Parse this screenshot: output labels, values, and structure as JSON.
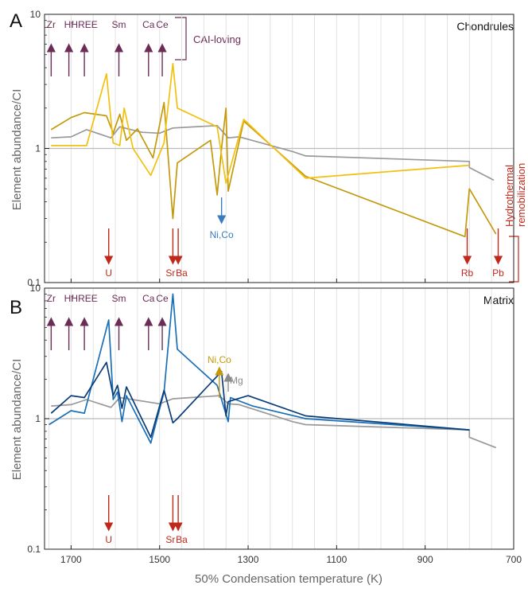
{
  "chart_data": [
    {
      "type": "line",
      "panel": "A",
      "title": "Chondrules",
      "xlabel": "50% Condensation temperature (K)",
      "ylabel": "Element abundance/CI",
      "xlim": [
        1760,
        700
      ],
      "ylim": [
        0.1,
        10
      ],
      "y_scale": "log",
      "x_ticks": [
        1700,
        1500,
        1300,
        1100,
        900,
        700
      ],
      "y_ticks": [
        {
          "v": 0.1,
          "label": "0.1"
        },
        {
          "v": 1,
          "label": "1"
        },
        {
          "v": 10,
          "label": "10"
        }
      ],
      "reference_line": 1,
      "series": [
        {
          "color": "#999999",
          "points": [
            [
              1745,
              1.2
            ],
            [
              1700,
              1.22
            ],
            [
              1665,
              1.38
            ],
            [
              1610,
              1.2
            ],
            [
              1590,
              1.45
            ],
            [
              1540,
              1.32
            ],
            [
              1500,
              1.3
            ],
            [
              1470,
              1.42
            ],
            [
              1370,
              1.48
            ],
            [
              1345,
              1.2
            ],
            [
              1320,
              1.22
            ],
            [
              1200,
              0.95
            ],
            [
              1170,
              0.88
            ],
            [
              800,
              0.8
            ],
            [
              800,
              0.72
            ],
            [
              745,
              0.58
            ]
          ]
        },
        {
          "color": "#c49a0a",
          "points": [
            [
              1745,
              1.38
            ],
            [
              1700,
              1.7
            ],
            [
              1670,
              1.85
            ],
            [
              1620,
              1.75
            ],
            [
              1605,
              1.3
            ],
            [
              1590,
              1.8
            ],
            [
              1575,
              1.15
            ],
            [
              1550,
              1.4
            ],
            [
              1515,
              0.85
            ],
            [
              1490,
              2.2
            ],
            [
              1470,
              0.3
            ],
            [
              1460,
              0.78
            ],
            [
              1385,
              1.15
            ],
            [
              1370,
              0.45
            ],
            [
              1360,
              1.0
            ],
            [
              1350,
              2.0
            ],
            [
              1345,
              0.48
            ],
            [
              1310,
              1.6
            ],
            [
              1170,
              0.62
            ],
            [
              810,
              0.22
            ],
            [
              800,
              0.5
            ],
            [
              740,
              0.23
            ]
          ]
        },
        {
          "color": "#f2c00e",
          "points": [
            [
              1745,
              1.05
            ],
            [
              1700,
              1.05
            ],
            [
              1665,
              1.05
            ],
            [
              1620,
              3.6
            ],
            [
              1605,
              1.1
            ],
            [
              1590,
              1.05
            ],
            [
              1580,
              2.0
            ],
            [
              1560,
              1.0
            ],
            [
              1520,
              0.63
            ],
            [
              1490,
              1.1
            ],
            [
              1470,
              4.3
            ],
            [
              1460,
              2.0
            ],
            [
              1370,
              1.45
            ],
            [
              1350,
              0.55
            ],
            [
              1310,
              1.65
            ],
            [
              1170,
              0.6
            ],
            [
              800,
              0.75
            ]
          ]
        }
      ]
    },
    {
      "type": "line",
      "panel": "B",
      "title": "Matrix",
      "xlabel": "50% Condensation temperature (K)",
      "ylabel": "Element abundance/CI",
      "xlim": [
        1760,
        700
      ],
      "ylim": [
        0.1,
        10
      ],
      "y_scale": "log",
      "x_ticks": [
        1700,
        1500,
        1300,
        1100,
        900,
        700
      ],
      "y_ticks": [
        {
          "v": 0.1,
          "label": "0.1"
        },
        {
          "v": 1,
          "label": "1"
        },
        {
          "v": 10,
          "label": "10"
        }
      ],
      "reference_line": 1,
      "series": [
        {
          "color": "#999999",
          "points": [
            [
              1745,
              1.25
            ],
            [
              1700,
              1.28
            ],
            [
              1665,
              1.4
            ],
            [
              1610,
              1.22
            ],
            [
              1590,
              1.45
            ],
            [
              1500,
              1.3
            ],
            [
              1470,
              1.42
            ],
            [
              1365,
              1.5
            ],
            [
              1345,
              1.3
            ],
            [
              1320,
              1.28
            ],
            [
              1200,
              0.95
            ],
            [
              1170,
              0.9
            ],
            [
              800,
              0.82
            ],
            [
              800,
              0.72
            ],
            [
              740,
              0.6
            ]
          ]
        },
        {
          "color": "#1a70b8",
          "points": [
            [
              1750,
              0.9
            ],
            [
              1700,
              1.15
            ],
            [
              1670,
              1.1
            ],
            [
              1615,
              5.7
            ],
            [
              1605,
              1.4
            ],
            [
              1595,
              1.6
            ],
            [
              1585,
              0.95
            ],
            [
              1575,
              1.5
            ],
            [
              1520,
              0.65
            ],
            [
              1490,
              1.6
            ],
            [
              1470,
              9.0
            ],
            [
              1460,
              3.4
            ],
            [
              1370,
              1.8
            ],
            [
              1360,
              1.4
            ],
            [
              1345,
              0.95
            ],
            [
              1340,
              1.45
            ],
            [
              1290,
              1.25
            ],
            [
              1170,
              1.0
            ],
            [
              800,
              0.82
            ]
          ]
        },
        {
          "color": "#0a3d78",
          "points": [
            [
              1745,
              1.1
            ],
            [
              1700,
              1.5
            ],
            [
              1670,
              1.45
            ],
            [
              1620,
              2.7
            ],
            [
              1605,
              1.5
            ],
            [
              1595,
              1.8
            ],
            [
              1585,
              1.2
            ],
            [
              1575,
              1.75
            ],
            [
              1520,
              0.72
            ],
            [
              1490,
              1.65
            ],
            [
              1470,
              0.93
            ],
            [
              1460,
              1.0
            ],
            [
              1360,
              2.3
            ],
            [
              1350,
              1.05
            ],
            [
              1345,
              1.35
            ],
            [
              1300,
              1.5
            ],
            [
              1170,
              1.05
            ],
            [
              800,
              0.82
            ]
          ]
        }
      ]
    }
  ],
  "annotations": {
    "top_elements": [
      {
        "label": "Zr",
        "x": 1745
      },
      {
        "label": "Hf",
        "x": 1705
      },
      {
        "label": "HREE",
        "x": 1670
      },
      {
        "label": "Sm",
        "x": 1592
      },
      {
        "label": "Ca",
        "x": 1525
      },
      {
        "label": "Ce",
        "x": 1494
      }
    ],
    "top_color": "#6b2c56",
    "cai_label": "CAI-loving",
    "bottom_elements_a": [
      {
        "label": "U",
        "x": 1615
      },
      {
        "label": "Sr",
        "x": 1470
      },
      {
        "label": "Ba",
        "x": 1458
      },
      {
        "label": "Rb",
        "x": 805
      },
      {
        "label": "Pb",
        "x": 735
      }
    ],
    "bottom_elements_b": [
      {
        "label": "U",
        "x": 1615
      },
      {
        "label": "Sr",
        "x": 1470
      },
      {
        "label": "Ba",
        "x": 1458
      }
    ],
    "bottom_color": "#c0281c",
    "hydro_label_1": "Hydrothermal",
    "hydro_label_2": "remobilization",
    "nico_a": {
      "label": "Ni,Co",
      "x": 1360,
      "color": "#3a7bbf"
    },
    "nico_b": {
      "label": "Ni,Co",
      "x": 1365,
      "color": "#c49a0a"
    },
    "mg_b": {
      "label": "Mg",
      "x": 1345,
      "color": "#8a8a8a"
    }
  }
}
